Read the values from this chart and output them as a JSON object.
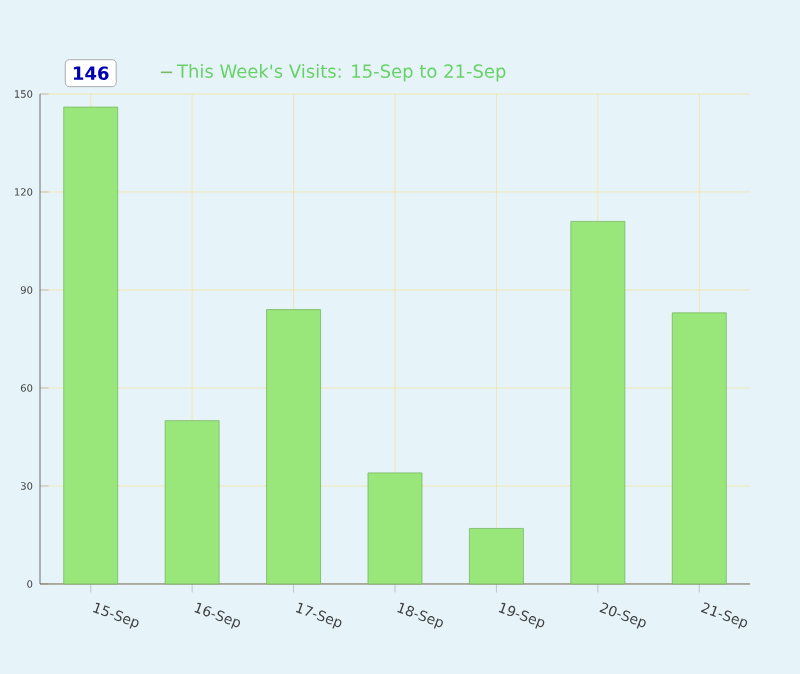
{
  "chart_data": {
    "type": "bar",
    "categories": [
      "15-Sep",
      "16-Sep",
      "17-Sep",
      "18-Sep",
      "19-Sep",
      "20-Sep",
      "21-Sep"
    ],
    "series": [
      {
        "name": "This Week's Visits: 15-Sep to 21-Sep",
        "color": "#99e67a",
        "values": [
          146,
          50,
          84,
          34,
          17,
          111,
          83
        ]
      }
    ],
    "ylim": [
      0,
      150
    ],
    "yticks": [
      0,
      30,
      60,
      90,
      120,
      150
    ],
    "grid": true,
    "legend": "top left",
    "annotations": [
      {
        "text": "146",
        "x": "15-Sep",
        "y": 146
      }
    ]
  }
}
